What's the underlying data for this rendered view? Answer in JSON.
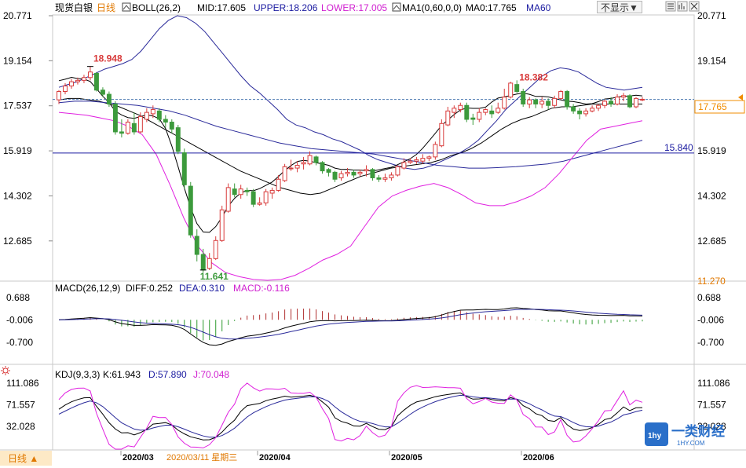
{
  "header": {
    "title": "现货白银",
    "period": "日线",
    "boll_label": "BOLL(26,2)",
    "boll_mid": "MID:17.605",
    "boll_upper": "UPPER:18.206",
    "boll_lower": "LOWER:17.005",
    "ma_label": "MA1(0,60,0,0)",
    "ma0": "MA0:17.765",
    "ma60": "MA60",
    "hide_button": "不显示▼",
    "icons": [
      "grid-icon",
      "chart-icon",
      "close-icon"
    ]
  },
  "macd_header": {
    "label": "MACD(26,12,9)",
    "diff": "DIFF:0.252",
    "dea": "DEA:0.310",
    "macd": "MACD:-0.116"
  },
  "kdj_header": {
    "label": "KDJ(9,3,3)",
    "k": "K:61.943",
    "d": "D:57.890",
    "j": "J:70.048"
  },
  "footer": {
    "period_button": "日线 ▲",
    "cursor_date": "2020/03/11 星期三",
    "months": [
      "2020/03",
      "2020/04",
      "2020/05",
      "2020/06"
    ]
  },
  "annotations": {
    "high": "18.948",
    "peak2": "18.382",
    "low": "11.641",
    "level_line": "15.840",
    "current_price": "17.765",
    "bottom_value": "11.270"
  },
  "watermark": {
    "brand": "一类财经",
    "site": "1HY.COM"
  },
  "colors": {
    "up": "#d83a3a",
    "down": "#3c9a3c",
    "boll_band": "#2a2a9a",
    "ma_line": "#000000",
    "lower_band": "#e020e0",
    "level_line": "#1a1aa0",
    "current_price": "#f08c00",
    "macd_pos": "#b03030",
    "macd_neg": "#2e9a2e"
  },
  "chart_data": [
    {
      "type": "candlestick",
      "title": "现货白银 日线",
      "y_ticks": [
        20.771,
        19.154,
        17.537,
        15.919,
        14.302,
        12.685
      ],
      "ylim": [
        11.27,
        20.771
      ],
      "x_month_labels": [
        "2020/03",
        "2020/04",
        "2020/05",
        "2020/06"
      ],
      "candles": [
        [
          17.75,
          18.05,
          17.6,
          18.1
        ],
        [
          18.05,
          18.25,
          17.95,
          18.35
        ],
        [
          18.25,
          18.4,
          18.15,
          18.5
        ],
        [
          18.4,
          18.45,
          18.3,
          18.55
        ],
        [
          18.45,
          18.55,
          18.35,
          18.65
        ],
        [
          18.55,
          18.75,
          18.45,
          18.95
        ],
        [
          18.7,
          18.1,
          18.05,
          18.75
        ],
        [
          18.1,
          17.95,
          17.85,
          18.2
        ],
        [
          17.95,
          17.6,
          17.5,
          18.05
        ],
        [
          17.6,
          16.6,
          16.5,
          17.7
        ],
        [
          16.6,
          16.55,
          16.4,
          17.05
        ],
        [
          16.55,
          16.95,
          16.5,
          17.05
        ],
        [
          16.9,
          16.6,
          16.5,
          17.3
        ],
        [
          16.6,
          17.15,
          16.55,
          17.3
        ],
        [
          17.05,
          17.3,
          16.95,
          17.45
        ],
        [
          17.25,
          17.4,
          17.1,
          17.55
        ],
        [
          17.35,
          17.05,
          16.95,
          17.45
        ],
        [
          17.05,
          16.95,
          16.75,
          17.2
        ],
        [
          16.95,
          16.7,
          16.55,
          17.05
        ],
        [
          16.75,
          15.9,
          15.8,
          16.85
        ],
        [
          15.85,
          14.7,
          14.55,
          16.0
        ],
        [
          14.65,
          12.9,
          12.8,
          14.8
        ],
        [
          12.85,
          12.2,
          11.95,
          13.1
        ],
        [
          12.2,
          11.64,
          11.55,
          12.4
        ],
        [
          11.7,
          12.05,
          11.64,
          12.25
        ],
        [
          12.05,
          12.7,
          12.0,
          12.85
        ],
        [
          12.7,
          13.8,
          12.65,
          13.95
        ],
        [
          13.75,
          14.6,
          13.7,
          14.75
        ],
        [
          14.55,
          14.35,
          14.25,
          14.75
        ],
        [
          14.35,
          14.55,
          14.2,
          14.7
        ],
        [
          14.5,
          14.45,
          14.3,
          14.6
        ],
        [
          14.45,
          14.0,
          13.9,
          14.55
        ],
        [
          14.0,
          14.05,
          13.95,
          14.25
        ],
        [
          14.05,
          14.45,
          13.95,
          14.55
        ],
        [
          14.4,
          14.5,
          14.2,
          14.6
        ],
        [
          14.5,
          14.9,
          14.45,
          15.05
        ],
        [
          14.85,
          15.35,
          14.8,
          15.45
        ],
        [
          15.3,
          15.3,
          15.2,
          15.6
        ],
        [
          15.3,
          15.4,
          15.15,
          15.55
        ],
        [
          15.45,
          15.5,
          15.25,
          15.7
        ],
        [
          15.45,
          15.75,
          15.4,
          15.9
        ],
        [
          15.7,
          15.5,
          15.4,
          15.75
        ],
        [
          15.5,
          15.2,
          15.1,
          15.55
        ],
        [
          15.25,
          15.15,
          15.0,
          15.3
        ],
        [
          15.15,
          14.9,
          14.8,
          15.2
        ],
        [
          14.95,
          15.1,
          14.85,
          15.2
        ],
        [
          15.1,
          15.15,
          15.0,
          15.3
        ],
        [
          15.15,
          15.05,
          14.95,
          15.25
        ],
        [
          15.1,
          15.15,
          15.0,
          15.25
        ],
        [
          15.2,
          15.25,
          15.0,
          15.4
        ],
        [
          15.25,
          14.95,
          14.85,
          15.3
        ],
        [
          14.95,
          14.9,
          14.8,
          15.05
        ],
        [
          14.9,
          14.95,
          14.8,
          15.1
        ],
        [
          14.95,
          15.05,
          14.85,
          15.15
        ],
        [
          15.05,
          15.35,
          15.0,
          15.4
        ],
        [
          15.3,
          15.5,
          15.25,
          15.65
        ],
        [
          15.5,
          15.55,
          15.45,
          15.65
        ],
        [
          15.55,
          15.6,
          15.45,
          15.7
        ],
        [
          15.55,
          15.65,
          15.45,
          15.8
        ],
        [
          15.65,
          15.7,
          15.55,
          15.75
        ],
        [
          15.7,
          16.15,
          15.6,
          16.25
        ],
        [
          16.1,
          16.9,
          16.05,
          17.05
        ],
        [
          16.85,
          17.35,
          16.8,
          17.5
        ],
        [
          17.3,
          17.45,
          17.1,
          17.55
        ],
        [
          17.4,
          17.55,
          17.3,
          17.65
        ],
        [
          17.55,
          17.05,
          16.95,
          17.65
        ],
        [
          17.1,
          17.05,
          16.85,
          17.25
        ],
        [
          17.05,
          17.3,
          16.95,
          17.45
        ],
        [
          17.3,
          17.4,
          17.2,
          17.45
        ],
        [
          17.35,
          17.25,
          17.1,
          17.55
        ],
        [
          17.3,
          17.45,
          17.25,
          17.65
        ],
        [
          17.45,
          17.85,
          17.4,
          18.15
        ],
        [
          17.85,
          18.35,
          17.8,
          18.4
        ],
        [
          18.3,
          18.05,
          18.0,
          18.45
        ],
        [
          18.05,
          17.6,
          17.5,
          18.15
        ],
        [
          17.6,
          17.75,
          17.45,
          17.85
        ],
        [
          17.75,
          17.6,
          17.45,
          17.8
        ],
        [
          17.6,
          17.7,
          17.45,
          17.85
        ],
        [
          17.7,
          17.55,
          17.4,
          17.8
        ],
        [
          17.55,
          17.8,
          17.45,
          17.9
        ],
        [
          17.8,
          18.05,
          17.75,
          18.1
        ],
        [
          18.05,
          17.5,
          17.4,
          18.1
        ],
        [
          17.5,
          17.35,
          17.25,
          17.6
        ],
        [
          17.35,
          17.25,
          17.05,
          17.45
        ],
        [
          17.25,
          17.35,
          17.15,
          17.45
        ],
        [
          17.35,
          17.45,
          17.3,
          17.55
        ],
        [
          17.45,
          17.55,
          17.35,
          17.6
        ],
        [
          17.55,
          17.7,
          17.45,
          17.75
        ],
        [
          17.7,
          17.6,
          17.5,
          17.85
        ],
        [
          17.6,
          17.85,
          17.55,
          17.95
        ],
        [
          17.85,
          17.9,
          17.7,
          18.0
        ],
        [
          17.9,
          17.5,
          17.45,
          17.95
        ],
        [
          17.5,
          17.8,
          17.45,
          17.85
        ],
        [
          17.75,
          17.77,
          17.7,
          17.85
        ]
      ],
      "levels": {
        "horizontal_line": 15.84,
        "current_price": 17.765,
        "marked_high": 18.948,
        "marked_peak": 18.382,
        "marked_low": 11.641
      },
      "series": [
        {
          "name": "UPPER",
          "values": [
            18.2,
            18.3,
            18.4,
            18.55,
            18.7,
            18.85,
            18.95,
            19.05,
            19.2,
            19.5,
            19.9,
            20.3,
            20.6,
            20.771,
            20.7,
            20.5,
            20.2,
            19.8,
            19.4,
            19.0,
            18.6,
            18.25,
            18.0,
            17.7,
            17.4,
            17.05,
            16.85,
            16.75,
            16.6,
            16.5,
            16.35,
            16.25,
            16.1,
            15.95,
            15.75,
            15.6,
            15.5,
            15.4,
            15.3,
            15.25,
            15.3,
            15.4,
            15.55,
            15.7,
            15.85,
            16.05,
            16.3,
            16.65,
            17.0,
            17.4,
            17.7,
            18.0,
            18.3,
            18.6,
            18.8,
            18.9,
            18.85,
            18.75,
            18.55,
            18.35,
            18.2,
            18.15,
            18.1,
            18.15,
            18.2
          ]
        },
        {
          "name": "MID",
          "values": [
            17.75,
            17.8,
            17.8,
            17.75,
            17.7,
            17.6,
            17.5,
            17.35,
            17.2,
            17.0,
            16.8,
            16.6,
            16.4,
            16.2,
            16.0,
            15.8,
            15.6,
            15.4,
            15.2,
            15.05,
            14.9,
            14.75,
            14.6,
            14.5,
            14.4,
            14.35,
            14.4,
            14.55,
            14.7,
            14.85,
            15.0,
            15.1,
            15.2,
            15.3,
            15.35,
            15.4,
            15.45,
            15.5,
            15.6,
            15.75,
            15.85,
            16.0,
            16.2,
            16.45,
            16.7,
            16.9,
            17.05,
            17.15,
            17.3,
            17.45,
            17.5,
            17.5,
            17.55,
            17.6,
            17.6,
            17.6,
            17.6,
            17.6,
            17.6
          ]
        },
        {
          "name": "MA60",
          "values": [
            17.65,
            17.7,
            17.7,
            17.65,
            17.6,
            17.55,
            17.45,
            17.35,
            17.2,
            17.0,
            16.8,
            16.65,
            16.5,
            16.35,
            16.2,
            16.1,
            16.0,
            15.95,
            15.9,
            15.85,
            15.8,
            15.7,
            15.6,
            15.5,
            15.4,
            15.35,
            15.3,
            15.3,
            15.32,
            15.35,
            15.4,
            15.45,
            15.55,
            15.7,
            15.85,
            16.0,
            16.15,
            16.3
          ]
        },
        {
          "name": "LOWER",
          "values": [
            17.3,
            17.25,
            17.2,
            17.1,
            17.0,
            16.8,
            16.5,
            15.8,
            14.7,
            13.5,
            12.5,
            11.9,
            11.55,
            11.4,
            11.3,
            11.27,
            11.3,
            11.45,
            11.7,
            12.0,
            12.2,
            12.5,
            13.2,
            13.9,
            14.3,
            14.5,
            14.65,
            14.75,
            14.6,
            14.35,
            14.05,
            13.95,
            13.95,
            14.1,
            14.3,
            14.6,
            15.1,
            15.7,
            16.3,
            16.7,
            16.8,
            16.9,
            17.0
          ]
        }
      ]
    },
    {
      "type": "bar",
      "title": "MACD(26,12,9)",
      "y_ticks": [
        0.688,
        -0.006,
        -0.7
      ],
      "series": [
        {
          "name": "DIFF",
          "value": 0.252
        },
        {
          "name": "DEA",
          "value": 0.31
        },
        {
          "name": "MACD",
          "value": -0.116
        }
      ]
    },
    {
      "type": "line",
      "title": "KDJ(9,3,3)",
      "y_ticks": [
        111.086,
        71.557,
        32.028
      ],
      "series": [
        {
          "name": "K",
          "value": 61.943
        },
        {
          "name": "D",
          "value": 57.89
        },
        {
          "name": "J",
          "value": 70.048
        }
      ]
    }
  ]
}
